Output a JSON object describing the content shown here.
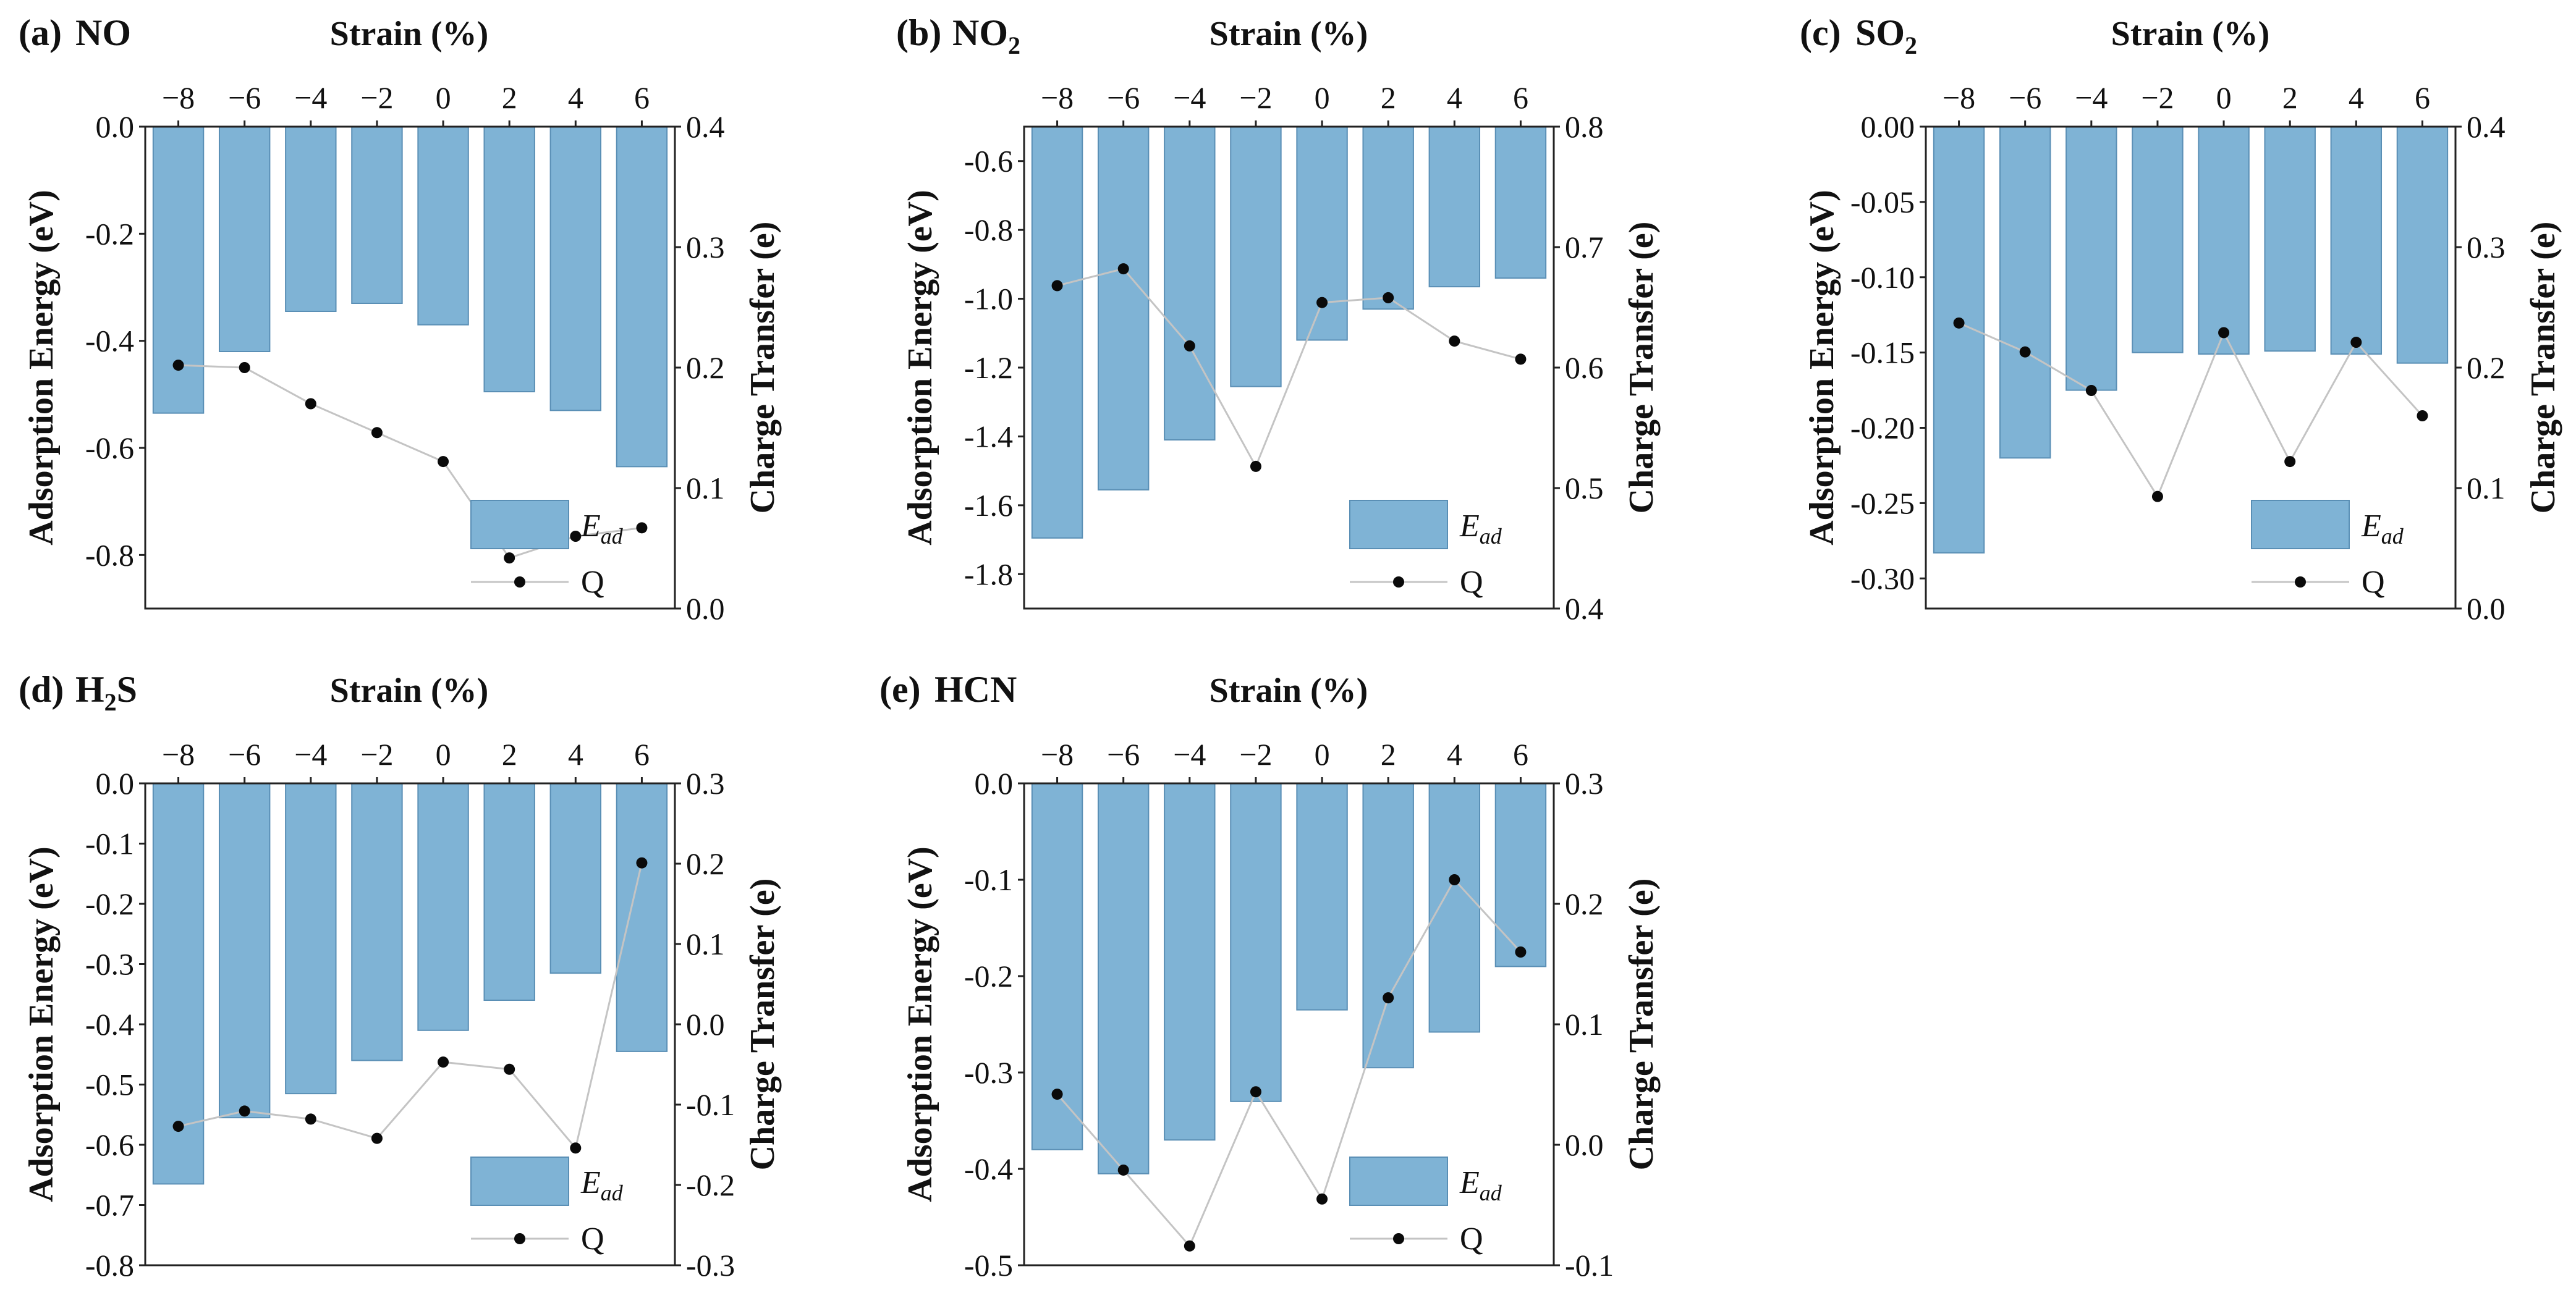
{
  "figure": {
    "x_axis_title": "Strain (%)",
    "left_axis_title": "Adsorption Energy (eV)",
    "right_axis_title": "Charge Transfer (e)",
    "legend_bar_label_main": "E",
    "legend_bar_label_sub": "ad",
    "legend_line_label": "Q",
    "bar_color": "#7fb3d5",
    "line_color": "#c4c4c4",
    "point_color": "#0a0a0a"
  },
  "chart_data": [
    {
      "type": "bar",
      "panel_label": "(a)",
      "molecule": "NO",
      "molecule_parts": [
        {
          "t": "NO",
          "sub": false
        }
      ],
      "categories": [
        "−8",
        "−6",
        "−4",
        "−2",
        "0",
        "2",
        "4",
        "6"
      ],
      "series": [
        {
          "name": "Ead",
          "axis": "left",
          "values": [
            -0.535,
            -0.42,
            -0.345,
            -0.33,
            -0.37,
            -0.495,
            -0.53,
            -0.635
          ]
        },
        {
          "name": "Q",
          "axis": "right",
          "type": "line",
          "values": [
            0.202,
            0.2,
            0.17,
            0.146,
            0.122,
            0.042,
            0.06,
            0.067
          ]
        }
      ],
      "ylim": [
        -0.9,
        0.0
      ],
      "y2lim": [
        0.0,
        0.4
      ],
      "yticks": [
        "0.0",
        "-0.2",
        "-0.4",
        "-0.6",
        "-0.8"
      ],
      "yticks_values": [
        0.0,
        -0.2,
        -0.4,
        -0.6,
        -0.8
      ],
      "y2ticks": [
        "0.4",
        "0.3",
        "0.2",
        "0.1",
        "0.0"
      ],
      "y2ticks_values": [
        0.4,
        0.3,
        0.2,
        0.1,
        0.0
      ],
      "xlabel": "Strain (%)",
      "ylabel": "Adsorption Energy (eV)",
      "y2label": "Charge Transfer (e)",
      "legend": "lower-left-center"
    },
    {
      "type": "bar",
      "panel_label": "(b)",
      "molecule": "NO2",
      "molecule_parts": [
        {
          "t": "NO",
          "sub": false
        },
        {
          "t": "2",
          "sub": true
        }
      ],
      "categories": [
        "−8",
        "−6",
        "−4",
        "−2",
        "0",
        "2",
        "4",
        "6"
      ],
      "series": [
        {
          "name": "Ead",
          "axis": "left",
          "values": [
            -1.695,
            -1.555,
            -1.41,
            -1.255,
            -1.12,
            -1.03,
            -0.965,
            -0.94
          ]
        },
        {
          "name": "Q",
          "axis": "right",
          "type": "line",
          "values": [
            0.668,
            0.682,
            0.618,
            0.518,
            0.654,
            0.658,
            0.622,
            0.607
          ]
        }
      ],
      "ylim": [
        -1.9,
        -0.5
      ],
      "y2lim": [
        0.4,
        0.8
      ],
      "yticks": [
        "-0.6",
        "-0.8",
        "-1.0",
        "-1.2",
        "-1.4",
        "-1.6",
        "-1.8"
      ],
      "yticks_values": [
        -0.6,
        -0.8,
        -1.0,
        -1.2,
        -1.4,
        -1.6,
        -1.8
      ],
      "y2ticks": [
        "0.8",
        "0.7",
        "0.6",
        "0.5",
        "0.4"
      ],
      "y2ticks_values": [
        0.8,
        0.7,
        0.6,
        0.5,
        0.4
      ],
      "xlabel": "Strain (%)",
      "ylabel": "Adsorption Energy (eV)",
      "y2label": "Charge Transfer (e)",
      "legend": "bottom-right"
    },
    {
      "type": "bar",
      "panel_label": "(c)",
      "molecule": "SO2",
      "molecule_parts": [
        {
          "t": "SO",
          "sub": false
        },
        {
          "t": "2",
          "sub": true
        }
      ],
      "categories": [
        "−8",
        "−6",
        "−4",
        "−2",
        "0",
        "2",
        "4",
        "6"
      ],
      "series": [
        {
          "name": "Ead",
          "axis": "left",
          "values": [
            -0.283,
            -0.22,
            -0.175,
            -0.15,
            -0.151,
            -0.149,
            -0.151,
            -0.157
          ]
        },
        {
          "name": "Q",
          "axis": "right",
          "type": "line",
          "values": [
            0.237,
            0.213,
            0.181,
            0.093,
            0.229,
            0.122,
            0.221,
            0.16
          ]
        }
      ],
      "ylim": [
        -0.32,
        0.0
      ],
      "y2lim": [
        0.0,
        0.4
      ],
      "yticks": [
        "0.00",
        "-0.05",
        "-0.10",
        "-0.15",
        "-0.20",
        "-0.25",
        "-0.30"
      ],
      "yticks_values": [
        0.0,
        -0.05,
        -0.1,
        -0.15,
        -0.2,
        -0.25,
        -0.3
      ],
      "y2ticks": [
        "0.4",
        "0.3",
        "0.2",
        "0.1",
        "0.0"
      ],
      "y2ticks_values": [
        0.4,
        0.3,
        0.2,
        0.1,
        0.0
      ],
      "xlabel": "Strain (%)",
      "ylabel": "Adsorption Energy (eV)",
      "y2label": "Charge Transfer (e)",
      "legend": "bottom-right"
    },
    {
      "type": "bar",
      "panel_label": "(d)",
      "molecule": "H2S",
      "molecule_parts": [
        {
          "t": "H",
          "sub": false
        },
        {
          "t": "2",
          "sub": true
        },
        {
          "t": "S",
          "sub": false
        }
      ],
      "categories": [
        "−8",
        "−6",
        "−4",
        "−2",
        "0",
        "2",
        "4",
        "6"
      ],
      "series": [
        {
          "name": "Ead",
          "axis": "left",
          "values": [
            -0.665,
            -0.555,
            -0.515,
            -0.46,
            -0.41,
            -0.36,
            -0.315,
            -0.445
          ]
        },
        {
          "name": "Q",
          "axis": "right",
          "type": "line",
          "values": [
            -0.127,
            -0.108,
            -0.118,
            -0.142,
            -0.047,
            -0.056,
            -0.154,
            0.201
          ]
        }
      ],
      "ylim": [
        -0.8,
        0.0
      ],
      "y2lim": [
        -0.3,
        0.3
      ],
      "yticks": [
        "0.0",
        "-0.1",
        "-0.2",
        "-0.3",
        "-0.4",
        "-0.5",
        "-0.6",
        "-0.7",
        "-0.8"
      ],
      "yticks_values": [
        0.0,
        -0.1,
        -0.2,
        -0.3,
        -0.4,
        -0.5,
        -0.6,
        -0.7,
        -0.8
      ],
      "y2ticks": [
        "0.3",
        "0.2",
        "0.1",
        "0.0",
        "-0.1",
        "-0.2",
        "-0.3"
      ],
      "y2ticks_values": [
        0.3,
        0.2,
        0.1,
        0.0,
        -0.1,
        -0.2,
        -0.3
      ],
      "xlabel": "Strain (%)",
      "ylabel": "Adsorption Energy (eV)",
      "y2label": "Charge Transfer (e)",
      "legend": "bottom-right"
    },
    {
      "type": "bar",
      "panel_label": "(e)",
      "molecule": "HCN",
      "molecule_parts": [
        {
          "t": "HCN",
          "sub": false
        }
      ],
      "categories": [
        "−8",
        "−6",
        "−4",
        "−2",
        "0",
        "2",
        "4",
        "6"
      ],
      "series": [
        {
          "name": "Ead",
          "axis": "left",
          "values": [
            -0.38,
            -0.405,
            -0.37,
            -0.33,
            -0.235,
            -0.295,
            -0.258,
            -0.19
          ]
        },
        {
          "name": "Q",
          "axis": "right",
          "type": "line",
          "values": [
            0.042,
            -0.021,
            -0.084,
            0.044,
            -0.045,
            0.122,
            0.22,
            0.16
          ]
        }
      ],
      "ylim": [
        -0.5,
        0.0
      ],
      "y2lim": [
        -0.1,
        0.3
      ],
      "yticks": [
        "0.0",
        "-0.1",
        "-0.2",
        "-0.3",
        "-0.4",
        "-0.5"
      ],
      "yticks_values": [
        0.0,
        -0.1,
        -0.2,
        -0.3,
        -0.4,
        -0.5
      ],
      "y2ticks": [
        "0.3",
        "0.2",
        "0.1",
        "0.0",
        "-0.1"
      ],
      "y2ticks_values": [
        0.3,
        0.2,
        0.1,
        0.0,
        -0.1
      ],
      "xlabel": "Strain (%)",
      "ylabel": "Adsorption Energy (eV)",
      "y2label": "Charge Transfer (e)",
      "legend": "bottom-right"
    }
  ]
}
